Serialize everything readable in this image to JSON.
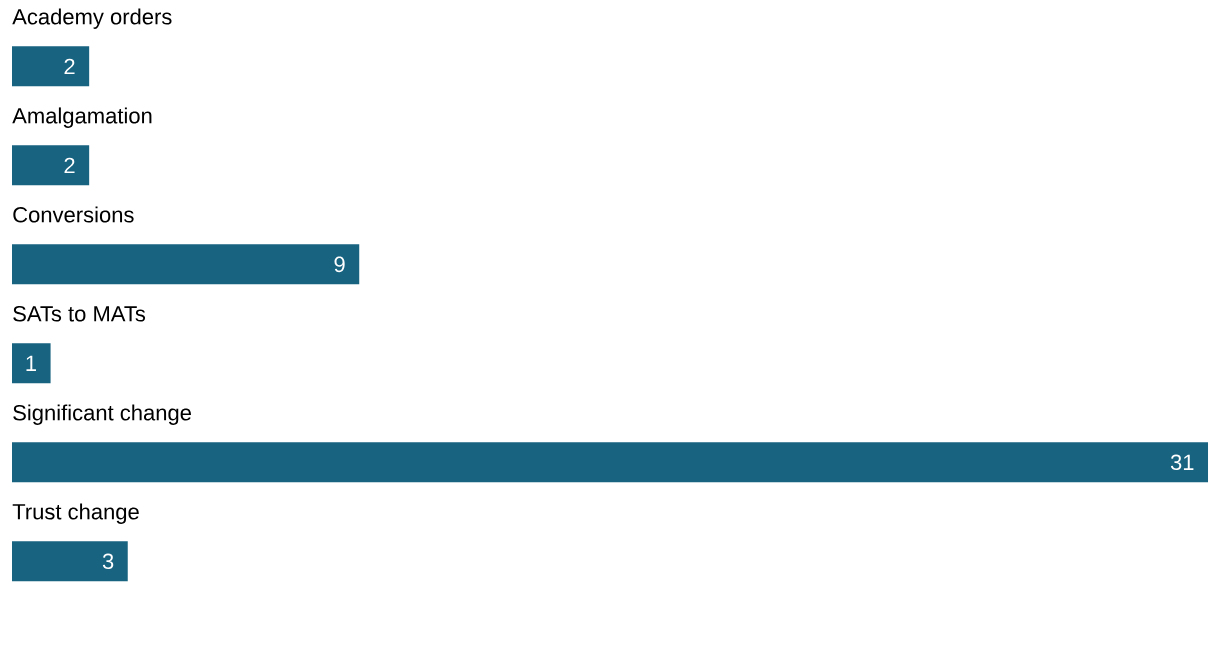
{
  "chart_data": {
    "type": "bar",
    "orientation": "horizontal",
    "categories": [
      "Academy orders",
      "Amalgamation",
      "Conversions",
      "SATs to MATs",
      "Significant change",
      "Trust change"
    ],
    "values": [
      2,
      2,
      9,
      1,
      31,
      3
    ],
    "color": "#176380",
    "data_labels": true
  }
}
